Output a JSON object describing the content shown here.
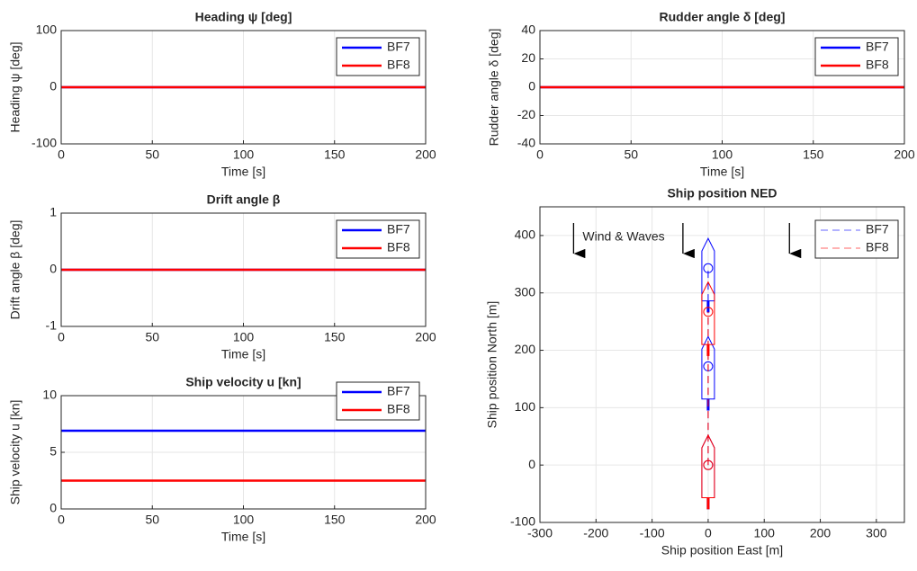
{
  "chart_data": [
    {
      "type": "line",
      "title": "Heading ψ [deg]",
      "x_label": "Time [s]",
      "y_label": "Heading ψ [deg]",
      "x": [
        0,
        200
      ],
      "xlim": [
        0,
        200
      ],
      "xticks": [
        0,
        50,
        100,
        150,
        200
      ],
      "ylim": [
        -100,
        100
      ],
      "yticks": [
        -100,
        0,
        100
      ],
      "grid": true,
      "legend": "northeast",
      "series": [
        {
          "name": "BF7",
          "color": "#0000ff",
          "values": [
            0,
            0
          ]
        },
        {
          "name": "BF8",
          "color": "#ff0000",
          "values": [
            0,
            0
          ]
        }
      ]
    },
    {
      "type": "line",
      "title": "Rudder angle δ [deg]",
      "x_label": "Time [s]",
      "y_label": "Rudder angle δ [deg]",
      "x": [
        0,
        200
      ],
      "xlim": [
        0,
        200
      ],
      "xticks": [
        0,
        50,
        100,
        150,
        200
      ],
      "ylim": [
        -40,
        40
      ],
      "yticks": [
        -40,
        -20,
        0,
        20,
        40
      ],
      "grid": true,
      "legend": "northeast",
      "series": [
        {
          "name": "BF7",
          "color": "#0000ff",
          "values": [
            0,
            0
          ]
        },
        {
          "name": "BF8",
          "color": "#ff0000",
          "values": [
            0,
            0
          ]
        }
      ]
    },
    {
      "type": "line",
      "title": "Drift angle β",
      "x_label": "Time [s]",
      "y_label": "Drift angle β [deg]",
      "x": [
        0,
        200
      ],
      "xlim": [
        0,
        200
      ],
      "xticks": [
        0,
        50,
        100,
        150,
        200
      ],
      "ylim": [
        -1,
        1
      ],
      "yticks": [
        -1,
        0,
        1
      ],
      "grid": true,
      "legend": "northeast",
      "series": [
        {
          "name": "BF7",
          "color": "#0000ff",
          "values": [
            0,
            0
          ]
        },
        {
          "name": "BF8",
          "color": "#ff0000",
          "values": [
            0,
            0
          ]
        }
      ]
    },
    {
      "type": "line",
      "title": "Ship velocity u [kn]",
      "x_label": "Time [s]",
      "y_label": "Ship velocity u [kn]",
      "x": [
        0,
        200
      ],
      "xlim": [
        0,
        200
      ],
      "xticks": [
        0,
        50,
        100,
        150,
        200
      ],
      "ylim": [
        0,
        10
      ],
      "yticks": [
        0,
        5,
        10
      ],
      "grid": true,
      "legend": "northeast",
      "series": [
        {
          "name": "BF7",
          "color": "#0000ff",
          "values": [
            6.9,
            6.9
          ]
        },
        {
          "name": "BF8",
          "color": "#ff0000",
          "values": [
            2.5,
            2.5
          ]
        }
      ]
    },
    {
      "type": "ned",
      "title": "Ship position NED",
      "x_label": "Ship position East [m]",
      "y_label": "Ship position North [m]",
      "annotation": "Wind & Waves",
      "xlim": [
        -300,
        350
      ],
      "xticks": [
        -300,
        -200,
        -100,
        0,
        100,
        200,
        300
      ],
      "ylim": [
        -100,
        450
      ],
      "yticks": [
        -100,
        0,
        100,
        200,
        300,
        400
      ],
      "grid": true,
      "legend": "northeast",
      "series": [
        {
          "name": "BF7",
          "color": "#0000ff",
          "x": [
            0,
            0,
            0
          ],
          "values": [
            0,
            172,
            343
          ]
        },
        {
          "name": "BF8",
          "color": "#ff0000",
          "x": [
            0,
            0
          ],
          "values": [
            0,
            267
          ]
        }
      ]
    }
  ]
}
